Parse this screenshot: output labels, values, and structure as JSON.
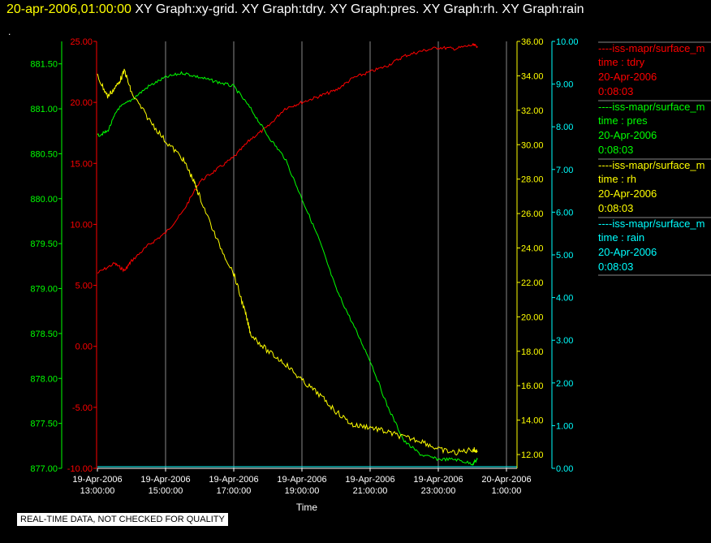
{
  "header": {
    "datetime": "20-apr-2006,01:00:00",
    "graphs": "XY Graph:xy-grid.  XY Graph:tdry.  XY Graph:pres.  XY Graph:rh.  XY Graph:rain"
  },
  "footer": {
    "qc_notice": "REAL-TIME DATA, NOT CHECKED FOR QUALITY"
  },
  "chart_data": {
    "type": "line",
    "xlabel": "Time",
    "x_ticks": [
      {
        "date": "19-Apr-2006",
        "time": "13:00:00",
        "h": 13
      },
      {
        "date": "19-Apr-2006",
        "time": "15:00:00",
        "h": 15
      },
      {
        "date": "19-Apr-2006",
        "time": "17:00:00",
        "h": 17
      },
      {
        "date": "19-Apr-2006",
        "time": "19:00:00",
        "h": 19
      },
      {
        "date": "19-Apr-2006",
        "time": "21:00:00",
        "h": 21
      },
      {
        "date": "19-Apr-2006",
        "time": "23:00:00",
        "h": 23
      },
      {
        "date": "20-Apr-2006",
        "time": "1:00:00",
        "h": 25
      }
    ],
    "xlim": [
      13,
      26.1
    ],
    "axes": {
      "pres": {
        "color": "#00ff00",
        "min": 877.0,
        "max": 881.75,
        "ticks": [
          "877.00",
          "877.50",
          "878.00",
          "878.50",
          "879.00",
          "879.50",
          "880.00",
          "880.50",
          "881.00",
          "881.50"
        ]
      },
      "tdry": {
        "color": "#ff0000",
        "min": -10.0,
        "max": 25.0,
        "ticks": [
          "-10.00",
          "-5.00",
          "0.00",
          "5.00",
          "10.00",
          "15.00",
          "20.00",
          "25.00"
        ]
      },
      "rh": {
        "color": "#ffff00",
        "min": 11.2,
        "max": 36.0,
        "ticks": [
          "12.00",
          "14.00",
          "16.00",
          "18.00",
          "20.00",
          "22.00",
          "24.00",
          "26.00",
          "28.00",
          "30.00",
          "32.00",
          "34.00",
          "36.00"
        ]
      },
      "rain": {
        "color": "#00ffff",
        "min": 0.0,
        "max": 10.0,
        "ticks": [
          "0.00",
          "1.00",
          "2.00",
          "3.00",
          "4.00",
          "5.00",
          "6.00",
          "7.00",
          "8.00",
          "9.00",
          "10.00"
        ]
      }
    },
    "series": [
      {
        "name": "tdry",
        "color": "#ff0000",
        "x": [
          13.0,
          13.5,
          13.8,
          14.0,
          14.5,
          15.0,
          15.5,
          16.0,
          16.5,
          17.0,
          17.5,
          18.0,
          18.5,
          19.0,
          19.5,
          20.0,
          20.5,
          21.0,
          21.5,
          22.0,
          22.5,
          23.0,
          23.5,
          24.0,
          24.15
        ],
        "y": [
          6.0,
          6.8,
          6.2,
          7.0,
          8.3,
          9.3,
          11.0,
          13.5,
          14.5,
          15.5,
          17.0,
          18.0,
          19.5,
          20.0,
          20.5,
          21.0,
          22.0,
          22.5,
          23.0,
          23.8,
          24.2,
          24.5,
          24.4,
          24.7,
          24.6
        ]
      },
      {
        "name": "pres",
        "color": "#00ff00",
        "x": [
          13.0,
          13.3,
          13.6,
          14.0,
          14.5,
          15.0,
          15.5,
          16.0,
          16.5,
          17.0,
          17.5,
          18.0,
          18.5,
          19.0,
          19.5,
          20.0,
          20.5,
          21.0,
          21.5,
          22.0,
          22.5,
          23.0,
          23.5,
          24.0,
          24.15
        ],
        "y": [
          880.7,
          880.75,
          881.0,
          881.1,
          881.25,
          881.35,
          881.4,
          881.35,
          881.3,
          881.25,
          881.0,
          880.7,
          880.45,
          880.0,
          879.55,
          879.0,
          878.6,
          878.2,
          877.7,
          877.3,
          877.15,
          877.1,
          877.1,
          877.05,
          877.1
        ]
      },
      {
        "name": "rh",
        "color": "#ffff00",
        "x": [
          13.0,
          13.3,
          13.6,
          13.8,
          14.0,
          14.5,
          15.0,
          15.5,
          15.8,
          16.0,
          16.5,
          17.0,
          17.3,
          17.5,
          18.0,
          18.5,
          19.0,
          19.5,
          20.0,
          20.5,
          21.0,
          21.5,
          22.0,
          22.5,
          23.0,
          23.5,
          24.0,
          24.15
        ],
        "y": [
          34.0,
          32.8,
          33.5,
          34.3,
          33.0,
          31.5,
          30.2,
          29.2,
          28.0,
          27.0,
          24.5,
          22.5,
          20.5,
          19.0,
          18.0,
          17.3,
          16.3,
          15.5,
          14.5,
          13.7,
          13.6,
          13.3,
          13.0,
          12.8,
          12.3,
          12.1,
          12.3,
          12.2
        ]
      },
      {
        "name": "rain",
        "color": "#00ffff",
        "x": [
          13.0,
          24.15
        ],
        "y": [
          0.0,
          0.0
        ]
      }
    ],
    "legend": [
      {
        "label": "iss-mapr/surface_m",
        "var": "time : tdry",
        "date": "20-Apr-2006",
        "time": "0:08:03",
        "color": "#ff0000"
      },
      {
        "label": "iss-mapr/surface_m",
        "var": "time : pres",
        "date": "20-Apr-2006",
        "time": "0:08:03",
        "color": "#00ff00"
      },
      {
        "label": "iss-mapr/surface_m",
        "var": "time : rh",
        "date": "20-Apr-2006",
        "time": "0:08:03",
        "color": "#ffff00"
      },
      {
        "label": "iss-mapr/surface_m",
        "var": "time : rain",
        "date": "20-Apr-2006",
        "time": "0:08:03",
        "color": "#00ffff"
      }
    ],
    "legend_position": "right",
    "grid": "vertical"
  }
}
